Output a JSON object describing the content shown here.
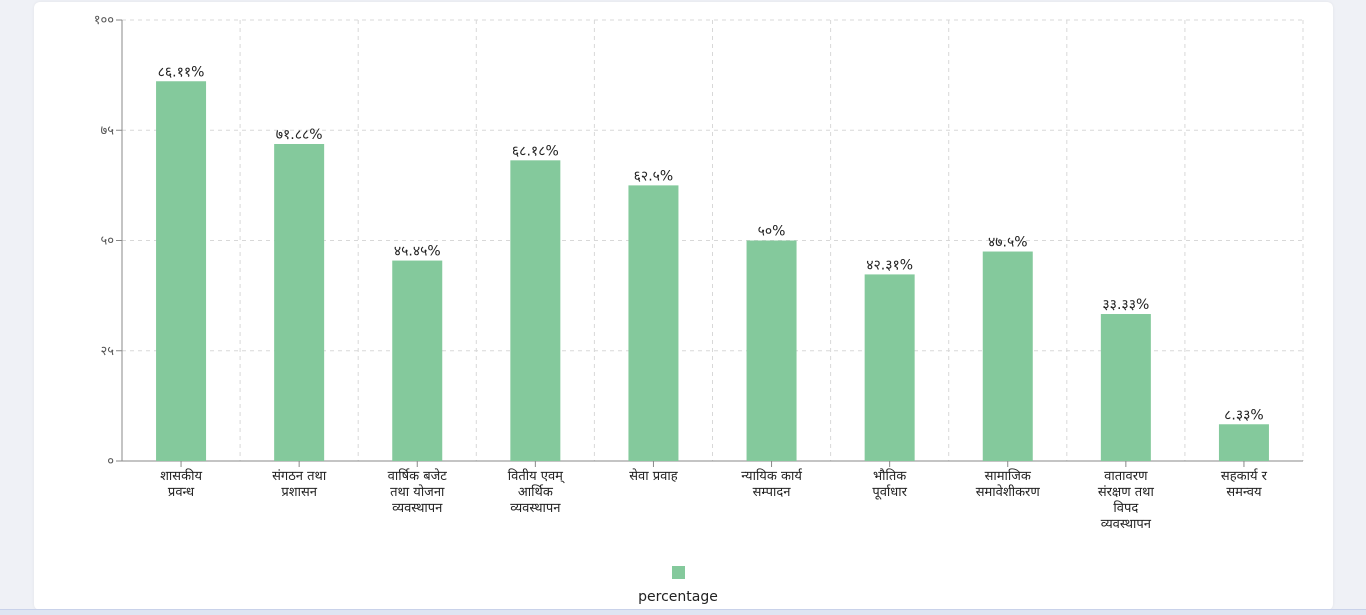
{
  "chart_data": {
    "type": "bar",
    "categories": [
      [
        "शासकीय",
        "प्रवन्ध"
      ],
      [
        "संगठन तथा",
        "प्रशासन"
      ],
      [
        "वार्षिक बजेट",
        "तथा योजना",
        "व्यवस्थापन"
      ],
      [
        "वितीय एवम्",
        "आर्थिक",
        "व्यवस्थापन"
      ],
      [
        "सेवा प्रवाह"
      ],
      [
        "न्यायिक कार्य",
        "सम्पादन"
      ],
      [
        "भौतिक",
        "पूर्वाधार"
      ],
      [
        "सामाजिक",
        "समावेशीकरण"
      ],
      [
        "वातावरण",
        "संरक्षण तथा",
        "विपद",
        "व्यवस्थापन"
      ],
      [
        "सहकार्य र",
        "समन्वय"
      ]
    ],
    "series": [
      {
        "name": "percentage",
        "values": [
          86.11,
          71.88,
          45.45,
          68.18,
          62.5,
          50,
          42.31,
          47.5,
          33.33,
          8.33
        ],
        "labels": [
          "८६.११%",
          "७१.८८%",
          "४५.४५%",
          "६८.१८%",
          "६२.५%",
          "५०%",
          "४२.३१%",
          "४७.५%",
          "३३.३३%",
          "८.३३%"
        ]
      }
    ],
    "y_ticks": [
      0,
      25,
      50,
      75,
      100
    ],
    "y_tick_labels": [
      "०",
      "२५",
      "५०",
      "७५",
      "१००"
    ],
    "ylim": [
      0,
      100
    ],
    "grid": true,
    "legend": "bottom-center",
    "colors": {
      "bar": "#84c99c",
      "grid": "#d8d8d8",
      "axis": "#888888"
    }
  }
}
